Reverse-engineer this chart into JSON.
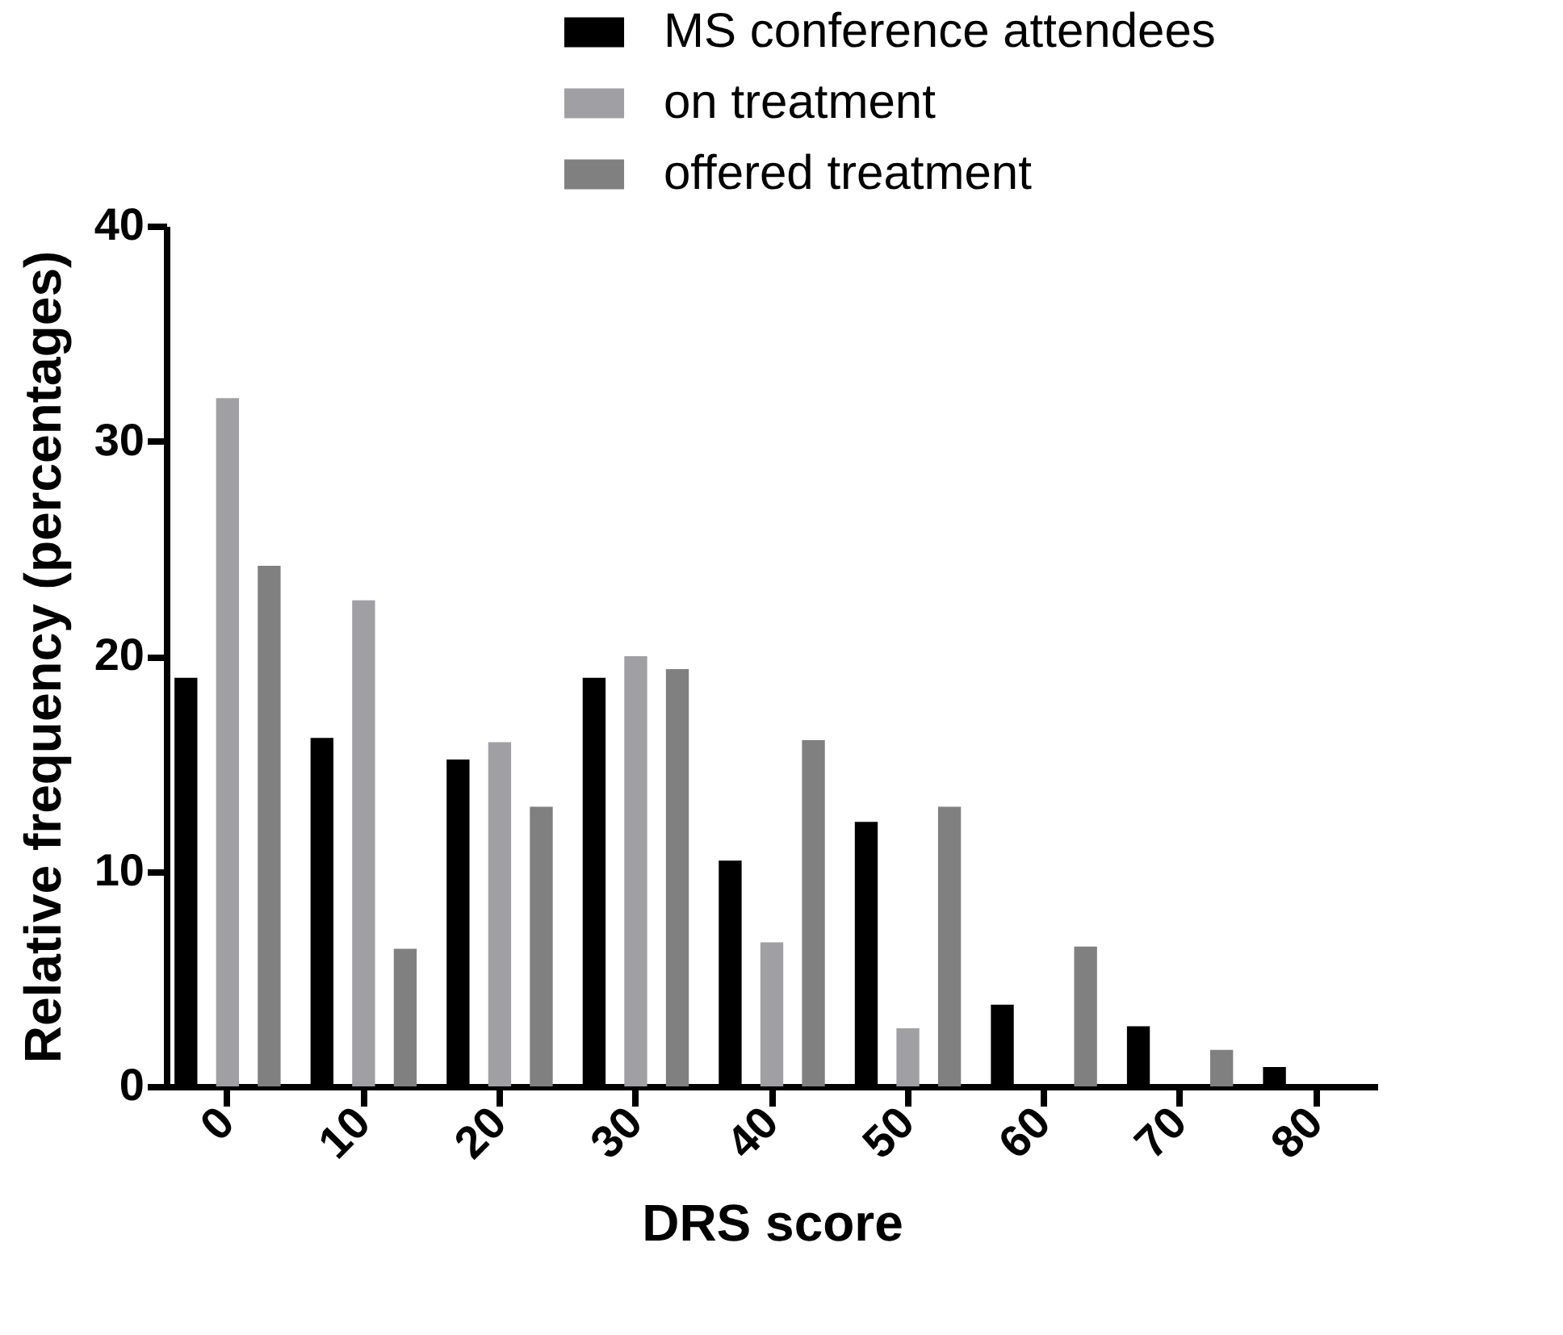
{
  "chart_data": {
    "type": "bar",
    "xlabel": "DRS score",
    "ylabel": "Relative frequency (percentages)",
    "categories": [
      "0",
      "10",
      "20",
      "30",
      "40",
      "50",
      "60",
      "70",
      "80"
    ],
    "series": [
      {
        "name": "MS conference attendees",
        "color": "#000000",
        "values": [
          19,
          16.2,
          15.2,
          19,
          10.5,
          12.3,
          3.8,
          2.8,
          0.9
        ]
      },
      {
        "name": "on treatment",
        "color": "#a0a0a4",
        "values": [
          32,
          22.6,
          16,
          20,
          6.7,
          2.7,
          0,
          0,
          0
        ]
      },
      {
        "name": "offered treatment",
        "color": "#808080",
        "values": [
          24.2,
          6.4,
          13,
          19.4,
          16.1,
          13,
          6.5,
          1.7,
          0
        ]
      }
    ],
    "ylim": [
      0,
      40
    ],
    "yticks": [
      0,
      10,
      20,
      30,
      40
    ],
    "grid": false,
    "legend": "top right"
  }
}
